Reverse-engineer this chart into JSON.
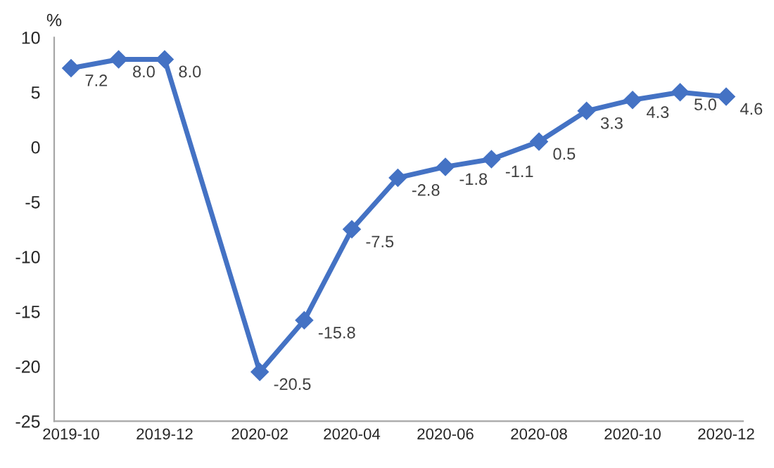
{
  "chart_data": {
    "type": "line",
    "ylabel": "%",
    "x": [
      "2019-10",
      "2019-11",
      "2019-12",
      "2020-02",
      "2020-03",
      "2020-04",
      "2020-05",
      "2020-06",
      "2020-07",
      "2020-08",
      "2020-09",
      "2020-10",
      "2020-11",
      "2020-12"
    ],
    "series": [
      {
        "color": "#4472c4",
        "values": [
          7.2,
          8.0,
          8.0,
          -20.5,
          -15.8,
          -7.5,
          -2.8,
          -1.8,
          -1.1,
          0.5,
          3.3,
          4.3,
          5.0,
          4.6
        ],
        "value_labels": [
          "7.2",
          "8.0",
          "8.0",
          "-20.5",
          "-15.8",
          "-7.5",
          "-2.8",
          "-1.8",
          "-1.1",
          "0.5",
          "3.3",
          "4.3",
          "5.0",
          "4.6"
        ]
      }
    ],
    "xlim": [
      "2019-09-20",
      "2020-12-12"
    ],
    "xticks": [
      "2019-10",
      "2019-12",
      "2020-02",
      "2020-04",
      "2020-06",
      "2020-08",
      "2020-10",
      "2020-12"
    ],
    "ylim": [
      -25,
      10
    ],
    "yticks": [
      -25,
      -20,
      -15,
      -10,
      -5,
      0,
      5,
      10
    ],
    "grid": false,
    "legend": false,
    "marker": "diamond",
    "line_style": "solid"
  }
}
